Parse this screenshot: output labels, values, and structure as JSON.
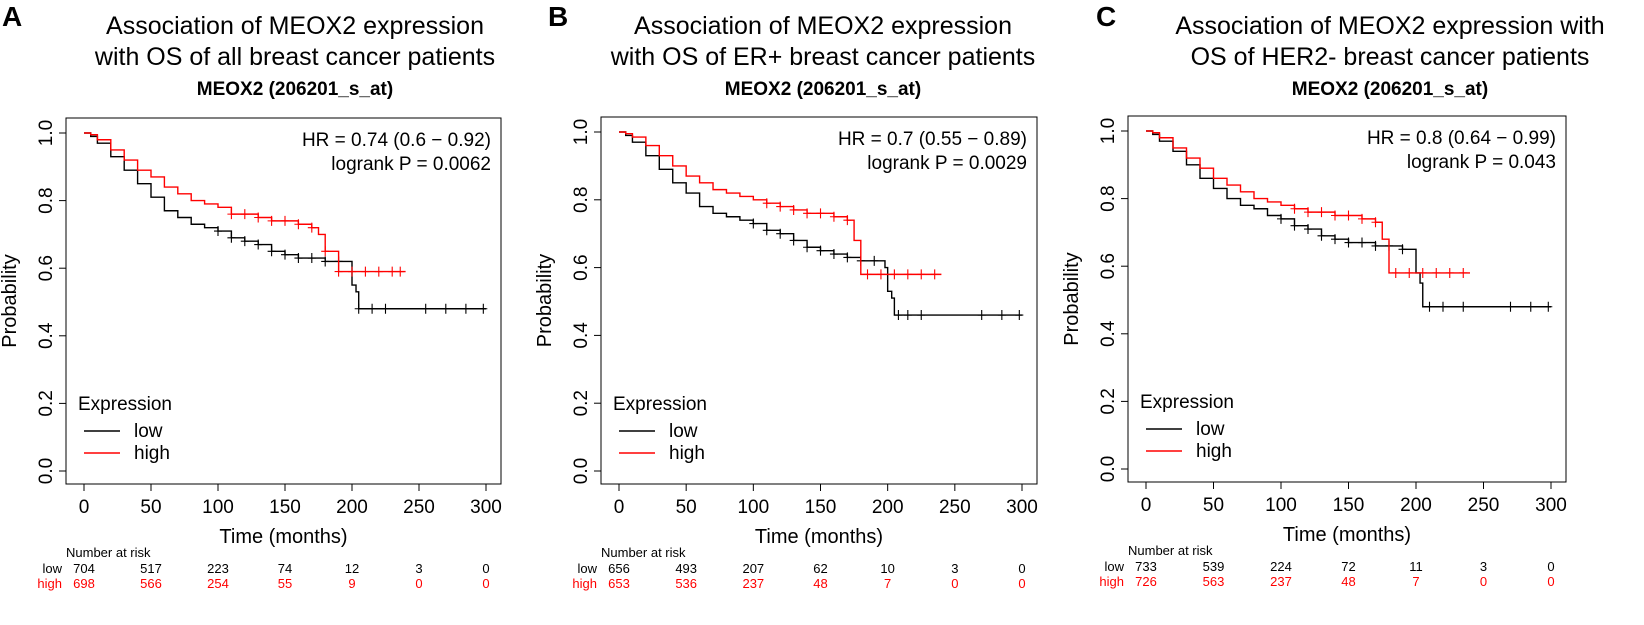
{
  "chart_data": [
    {
      "type": "line",
      "panel_letter": "A",
      "title_lines": [
        "Association of MEOX2 expression",
        "with OS of all breast cancer patients"
      ],
      "subtitle": "MEOX2 (206201_s_at)",
      "xlabel": "Time (months)",
      "ylabel": "Probability",
      "xlim": [
        0,
        300
      ],
      "ylim": [
        0,
        1
      ],
      "xticks": [
        0,
        50,
        100,
        150,
        200,
        250,
        300
      ],
      "yticks": [
        0.0,
        0.2,
        0.4,
        0.6,
        0.8,
        1.0
      ],
      "xtick_labels": [
        "0",
        "50",
        "100",
        "150",
        "200",
        "250",
        "300"
      ],
      "ytick_labels": [
        "0.0",
        "0.2",
        "0.4",
        "0.6",
        "0.8",
        "1.0"
      ],
      "hr_text": "HR = 0.74 (0.6 − 0.92)",
      "logrank_text": "logrank P = 0.0062",
      "legend_title": "Expression",
      "series": [
        {
          "name": "low",
          "color": "#000000",
          "x": [
            0,
            5,
            10,
            20,
            30,
            40,
            50,
            60,
            70,
            80,
            90,
            100,
            110,
            120,
            130,
            140,
            150,
            160,
            170,
            180,
            190,
            198,
            200,
            203,
            205,
            240,
            300
          ],
          "y": [
            1.0,
            0.99,
            0.97,
            0.93,
            0.89,
            0.85,
            0.81,
            0.77,
            0.75,
            0.73,
            0.72,
            0.71,
            0.69,
            0.68,
            0.67,
            0.65,
            0.64,
            0.63,
            0.63,
            0.62,
            0.62,
            0.62,
            0.55,
            0.53,
            0.48,
            0.48,
            0.48
          ],
          "censor_x": [
            100,
            110,
            120,
            130,
            140,
            150,
            160,
            170,
            180,
            190,
            205,
            215,
            225,
            255,
            270,
            285,
            298
          ]
        },
        {
          "name": "high",
          "color": "#ff0000",
          "x": [
            0,
            5,
            10,
            20,
            30,
            40,
            50,
            60,
            70,
            80,
            90,
            100,
            110,
            120,
            130,
            140,
            150,
            160,
            170,
            175,
            180,
            190,
            240
          ],
          "y": [
            1.0,
            0.995,
            0.98,
            0.95,
            0.92,
            0.89,
            0.87,
            0.84,
            0.82,
            0.8,
            0.79,
            0.78,
            0.76,
            0.76,
            0.75,
            0.74,
            0.74,
            0.73,
            0.72,
            0.7,
            0.65,
            0.59,
            0.59
          ],
          "censor_x": [
            110,
            120,
            130,
            140,
            150,
            160,
            170,
            180,
            190,
            200,
            210,
            220,
            230,
            236
          ]
        }
      ],
      "risk_table": {
        "title": "Number at risk",
        "times": [
          0,
          50,
          100,
          150,
          200,
          250,
          300
        ],
        "rows": [
          {
            "group": "low",
            "color": "#000000",
            "values": [
              "704",
              "517",
              "223",
              "74",
              "12",
              "3",
              "0"
            ]
          },
          {
            "group": "high",
            "color": "#ff0000",
            "values": [
              "698",
              "566",
              "254",
              "55",
              "9",
              "0",
              "0"
            ]
          }
        ]
      }
    },
    {
      "type": "line",
      "panel_letter": "B",
      "title_lines": [
        "Association of MEOX2 expression",
        "with OS of ER+ breast cancer patients"
      ],
      "subtitle": "MEOX2 (206201_s_at)",
      "xlabel": "Time (months)",
      "ylabel": "Probability",
      "xlim": [
        0,
        300
      ],
      "ylim": [
        0,
        1
      ],
      "xticks": [
        0,
        50,
        100,
        150,
        200,
        250,
        300
      ],
      "yticks": [
        0.0,
        0.2,
        0.4,
        0.6,
        0.8,
        1.0
      ],
      "xtick_labels": [
        "0",
        "50",
        "100",
        "150",
        "200",
        "250",
        "300"
      ],
      "ytick_labels": [
        "0.0",
        "0.2",
        "0.4",
        "0.6",
        "0.8",
        "1.0"
      ],
      "hr_text": "HR = 0.7 (0.55 − 0.89)",
      "logrank_text": "logrank P = 0.0029",
      "legend_title": "Expression",
      "series": [
        {
          "name": "low",
          "color": "#000000",
          "x": [
            0,
            5,
            10,
            20,
            30,
            40,
            50,
            60,
            70,
            80,
            90,
            100,
            110,
            120,
            130,
            140,
            150,
            160,
            170,
            180,
            190,
            198,
            200,
            203,
            205,
            300
          ],
          "y": [
            1.0,
            0.99,
            0.97,
            0.93,
            0.89,
            0.85,
            0.82,
            0.78,
            0.76,
            0.75,
            0.74,
            0.73,
            0.71,
            0.7,
            0.68,
            0.66,
            0.65,
            0.64,
            0.63,
            0.62,
            0.62,
            0.6,
            0.53,
            0.51,
            0.46,
            0.46
          ],
          "censor_x": [
            100,
            110,
            120,
            130,
            140,
            150,
            160,
            170,
            180,
            190,
            208,
            215,
            225,
            270,
            285,
            298
          ]
        },
        {
          "name": "high",
          "color": "#ff0000",
          "x": [
            0,
            5,
            10,
            20,
            30,
            40,
            50,
            60,
            70,
            80,
            90,
            100,
            110,
            120,
            130,
            140,
            150,
            160,
            170,
            175,
            180,
            240
          ],
          "y": [
            1.0,
            0.995,
            0.985,
            0.96,
            0.93,
            0.9,
            0.87,
            0.85,
            0.83,
            0.82,
            0.81,
            0.8,
            0.79,
            0.78,
            0.77,
            0.76,
            0.76,
            0.75,
            0.74,
            0.68,
            0.58,
            0.58
          ],
          "censor_x": [
            110,
            120,
            130,
            140,
            150,
            160,
            170,
            185,
            195,
            205,
            215,
            225,
            235
          ]
        }
      ],
      "risk_table": {
        "title": "Number at risk",
        "times": [
          0,
          50,
          100,
          150,
          200,
          250,
          300
        ],
        "rows": [
          {
            "group": "low",
            "color": "#000000",
            "values": [
              "656",
              "493",
              "207",
              "62",
              "10",
              "3",
              "0"
            ]
          },
          {
            "group": "high",
            "color": "#ff0000",
            "values": [
              "653",
              "536",
              "237",
              "48",
              "7",
              "0",
              "0"
            ]
          }
        ]
      }
    },
    {
      "type": "line",
      "panel_letter": "C",
      "title_lines": [
        "Association of MEOX2 expression with",
        "OS of HER2- breast cancer patients"
      ],
      "subtitle": "MEOX2 (206201_s_at)",
      "xlabel": "Time (months)",
      "ylabel": "Probability",
      "xlim": [
        0,
        300
      ],
      "ylim": [
        0,
        1
      ],
      "xticks": [
        0,
        50,
        100,
        150,
        200,
        250,
        300
      ],
      "yticks": [
        0.0,
        0.2,
        0.4,
        0.6,
        0.8,
        1.0
      ],
      "xtick_labels": [
        "0",
        "50",
        "100",
        "150",
        "200",
        "250",
        "300"
      ],
      "ytick_labels": [
        "0.0",
        "0.2",
        "0.4",
        "0.6",
        "0.8",
        "1.0"
      ],
      "hr_text": "HR = 0.8 (0.64 − 0.99)",
      "logrank_text": "logrank P = 0.043",
      "legend_title": "Expression",
      "series": [
        {
          "name": "low",
          "color": "#000000",
          "x": [
            0,
            5,
            10,
            20,
            30,
            40,
            50,
            60,
            70,
            80,
            90,
            100,
            110,
            120,
            130,
            140,
            150,
            160,
            170,
            180,
            190,
            198,
            200,
            203,
            205,
            300
          ],
          "y": [
            1.0,
            0.99,
            0.97,
            0.94,
            0.9,
            0.86,
            0.83,
            0.8,
            0.78,
            0.77,
            0.75,
            0.74,
            0.72,
            0.71,
            0.69,
            0.68,
            0.67,
            0.67,
            0.66,
            0.66,
            0.65,
            0.65,
            0.58,
            0.55,
            0.48,
            0.48
          ],
          "censor_x": [
            100,
            110,
            120,
            130,
            140,
            150,
            160,
            170,
            180,
            190,
            210,
            220,
            235,
            270,
            285,
            298
          ]
        },
        {
          "name": "high",
          "color": "#ff0000",
          "x": [
            0,
            5,
            10,
            20,
            30,
            40,
            50,
            60,
            70,
            80,
            90,
            100,
            110,
            120,
            130,
            140,
            150,
            160,
            170,
            175,
            180,
            240
          ],
          "y": [
            1.0,
            0.995,
            0.98,
            0.95,
            0.92,
            0.89,
            0.86,
            0.84,
            0.82,
            0.8,
            0.79,
            0.78,
            0.77,
            0.76,
            0.76,
            0.75,
            0.75,
            0.74,
            0.73,
            0.68,
            0.58,
            0.58
          ],
          "censor_x": [
            110,
            120,
            130,
            140,
            150,
            160,
            170,
            185,
            195,
            205,
            215,
            225,
            235
          ]
        }
      ],
      "risk_table": {
        "title": "Number at risk",
        "times": [
          0,
          50,
          100,
          150,
          200,
          250,
          300
        ],
        "rows": [
          {
            "group": "low",
            "color": "#000000",
            "values": [
              "733",
              "539",
              "224",
              "72",
              "11",
              "3",
              "0"
            ]
          },
          {
            "group": "high",
            "color": "#ff0000",
            "values": [
              "726",
              "563",
              "237",
              "48",
              "7",
              "0",
              "0"
            ]
          }
        ]
      }
    }
  ]
}
